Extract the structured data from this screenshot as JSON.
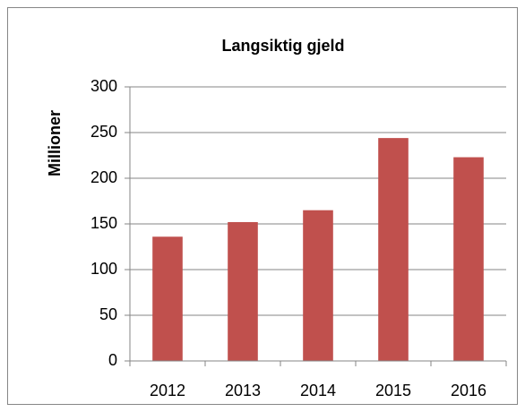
{
  "chart_data": {
    "type": "bar",
    "title": "Langsiktig gjeld",
    "y_label": "Millioner",
    "categories": [
      "2012",
      "2013",
      "2014",
      "2015",
      "2016"
    ],
    "values": [
      136,
      152,
      165,
      244,
      223
    ],
    "color": "#c0504d",
    "ylim": [
      0,
      300
    ],
    "yticks": [
      0,
      50,
      100,
      150,
      200,
      250,
      300
    ],
    "grid": true
  }
}
